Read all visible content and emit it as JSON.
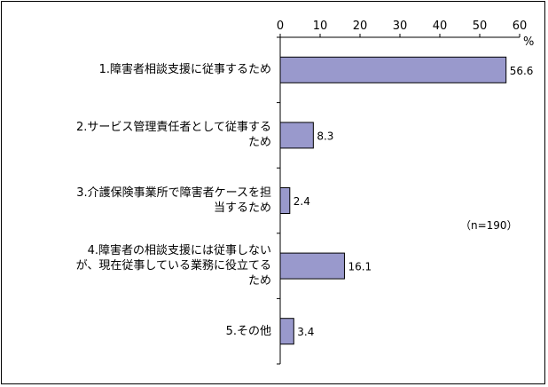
{
  "chart_data": {
    "type": "bar",
    "orientation": "horizontal",
    "categories": [
      [
        "1.障害者相談支援に従事するため"
      ],
      [
        "2.サービス管理責任者として従事する",
        "ため"
      ],
      [
        "3.介護保険事業所で障害者ケースを担",
        "当するため"
      ],
      [
        "4.障害者の相談支援には従事しない",
        "が、現在従事している業務に役立てる",
        "ため"
      ],
      [
        "5.その他"
      ]
    ],
    "values": [
      56.6,
      8.3,
      2.4,
      16.1,
      3.4
    ],
    "value_labels": [
      "56.6",
      "8.3",
      "2.4",
      "16.1",
      "3.4"
    ],
    "xlim": [
      0,
      60
    ],
    "xticks": [
      "0",
      "10",
      "20",
      "30",
      "40",
      "50",
      "60"
    ],
    "unit": "%",
    "annotation": "（n=190）",
    "grid": false,
    "legend": "none",
    "colors": {
      "bar_fill": "#9999cc",
      "bar_stroke": "#000000"
    }
  }
}
